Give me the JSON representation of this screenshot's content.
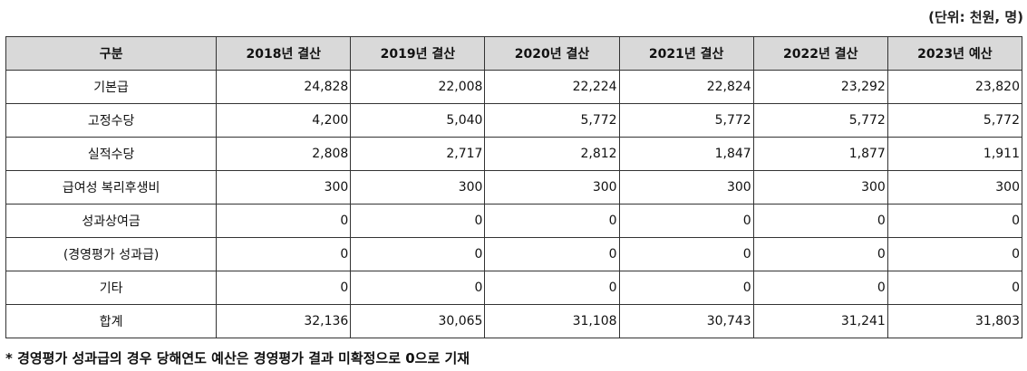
{
  "unit_note": "(단위: 천원, 명)",
  "table": {
    "headers": [
      "구분",
      "2018년 결산",
      "2019년 결산",
      "2020년 결산",
      "2021년 결산",
      "2022년 결산",
      "2023년 예산"
    ],
    "rows": [
      {
        "label": "기본급",
        "values": [
          "24,828",
          "22,008",
          "22,224",
          "22,824",
          "23,292",
          "23,820"
        ]
      },
      {
        "label": "고정수당",
        "values": [
          "4,200",
          "5,040",
          "5,772",
          "5,772",
          "5,772",
          "5,772"
        ]
      },
      {
        "label": "실적수당",
        "values": [
          "2,808",
          "2,717",
          "2,812",
          "1,847",
          "1,877",
          "1,911"
        ]
      },
      {
        "label": "급여성 복리후생비",
        "values": [
          "300",
          "300",
          "300",
          "300",
          "300",
          "300"
        ]
      },
      {
        "label": "성과상여금",
        "values": [
          "0",
          "0",
          "0",
          "0",
          "0",
          "0"
        ]
      },
      {
        "label": "(경영평가 성과급)",
        "values": [
          "0",
          "0",
          "0",
          "0",
          "0",
          "0"
        ]
      },
      {
        "label": "기타",
        "values": [
          "0",
          "0",
          "0",
          "0",
          "0",
          "0"
        ]
      },
      {
        "label": "합계",
        "values": [
          "32,136",
          "30,065",
          "31,108",
          "30,743",
          "31,241",
          "31,803"
        ]
      }
    ]
  },
  "footnote": "* 경영평가 성과급의 경우 당해연도 예산은 경영평가 결과 미확정으로 0으로 기재"
}
